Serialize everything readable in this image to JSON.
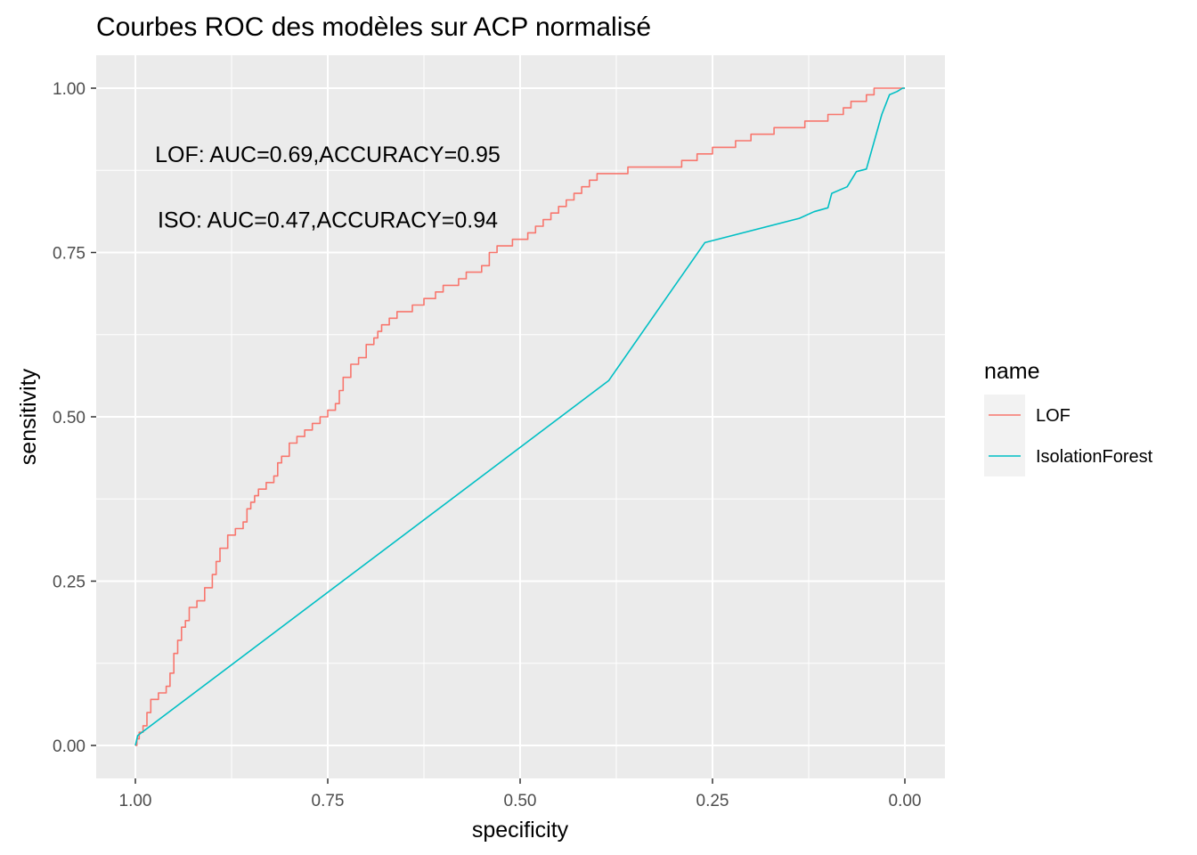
{
  "chart_data": {
    "type": "line",
    "title": "Courbes ROC des modèles sur ACP normalisé",
    "xlabel": "specificity",
    "ylabel": "sensitivity",
    "xlim": [
      1.0,
      0.0
    ],
    "ylim": [
      0.0,
      1.0
    ],
    "x_reversed": true,
    "x_ticks": [
      {
        "value": 1.0,
        "label": "1.00"
      },
      {
        "value": 0.75,
        "label": "0.75"
      },
      {
        "value": 0.5,
        "label": "0.50"
      },
      {
        "value": 0.25,
        "label": "0.25"
      },
      {
        "value": 0.0,
        "label": "0.00"
      }
    ],
    "y_ticks": [
      {
        "value": 0.0,
        "label": "0.00"
      },
      {
        "value": 0.25,
        "label": "0.25"
      },
      {
        "value": 0.5,
        "label": "0.50"
      },
      {
        "value": 0.75,
        "label": "0.75"
      },
      {
        "value": 1.0,
        "label": "1.00"
      }
    ],
    "grid": true,
    "legend": {
      "title": "name",
      "placement": "right"
    },
    "annotations": [
      {
        "text": "LOF: AUC=0.69,ACCURACY=0.95",
        "x": 0.75,
        "y": 0.9
      },
      {
        "text": "ISO: AUC=0.47,ACCURACY=0.94",
        "x": 0.75,
        "y": 0.8
      }
    ],
    "series": [
      {
        "name": "LOF",
        "color": "#F8766D",
        "step": true,
        "points": [
          [
            1.0,
            0.0
          ],
          [
            0.998,
            0.01
          ],
          [
            0.995,
            0.02
          ],
          [
            0.99,
            0.03
          ],
          [
            0.985,
            0.05
          ],
          [
            0.98,
            0.07
          ],
          [
            0.97,
            0.08
          ],
          [
            0.96,
            0.09
          ],
          [
            0.955,
            0.11
          ],
          [
            0.95,
            0.14
          ],
          [
            0.945,
            0.16
          ],
          [
            0.94,
            0.18
          ],
          [
            0.935,
            0.19
          ],
          [
            0.93,
            0.21
          ],
          [
            0.92,
            0.22
          ],
          [
            0.91,
            0.24
          ],
          [
            0.9,
            0.26
          ],
          [
            0.895,
            0.28
          ],
          [
            0.89,
            0.3
          ],
          [
            0.88,
            0.32
          ],
          [
            0.87,
            0.33
          ],
          [
            0.86,
            0.34
          ],
          [
            0.855,
            0.36
          ],
          [
            0.85,
            0.37
          ],
          [
            0.845,
            0.38
          ],
          [
            0.84,
            0.39
          ],
          [
            0.83,
            0.4
          ],
          [
            0.82,
            0.41
          ],
          [
            0.815,
            0.43
          ],
          [
            0.81,
            0.44
          ],
          [
            0.8,
            0.46
          ],
          [
            0.79,
            0.47
          ],
          [
            0.78,
            0.48
          ],
          [
            0.77,
            0.49
          ],
          [
            0.76,
            0.5
          ],
          [
            0.75,
            0.51
          ],
          [
            0.74,
            0.52
          ],
          [
            0.735,
            0.54
          ],
          [
            0.73,
            0.56
          ],
          [
            0.72,
            0.58
          ],
          [
            0.71,
            0.59
          ],
          [
            0.7,
            0.61
          ],
          [
            0.69,
            0.62
          ],
          [
            0.685,
            0.63
          ],
          [
            0.68,
            0.64
          ],
          [
            0.67,
            0.65
          ],
          [
            0.66,
            0.66
          ],
          [
            0.64,
            0.67
          ],
          [
            0.625,
            0.68
          ],
          [
            0.61,
            0.69
          ],
          [
            0.6,
            0.7
          ],
          [
            0.58,
            0.71
          ],
          [
            0.57,
            0.72
          ],
          [
            0.55,
            0.73
          ],
          [
            0.54,
            0.75
          ],
          [
            0.53,
            0.76
          ],
          [
            0.51,
            0.77
          ],
          [
            0.49,
            0.78
          ],
          [
            0.48,
            0.79
          ],
          [
            0.47,
            0.8
          ],
          [
            0.46,
            0.81
          ],
          [
            0.45,
            0.82
          ],
          [
            0.44,
            0.83
          ],
          [
            0.43,
            0.84
          ],
          [
            0.42,
            0.85
          ],
          [
            0.41,
            0.86
          ],
          [
            0.4,
            0.87
          ],
          [
            0.38,
            0.87
          ],
          [
            0.36,
            0.88
          ],
          [
            0.31,
            0.88
          ],
          [
            0.29,
            0.89
          ],
          [
            0.27,
            0.9
          ],
          [
            0.25,
            0.91
          ],
          [
            0.23,
            0.91
          ],
          [
            0.22,
            0.92
          ],
          [
            0.2,
            0.93
          ],
          [
            0.17,
            0.94
          ],
          [
            0.15,
            0.94
          ],
          [
            0.13,
            0.95
          ],
          [
            0.1,
            0.96
          ],
          [
            0.08,
            0.97
          ],
          [
            0.07,
            0.98
          ],
          [
            0.05,
            0.99
          ],
          [
            0.04,
            1.0
          ],
          [
            0.0,
            1.0
          ]
        ]
      },
      {
        "name": "IsolationForest",
        "color": "#00BFC4",
        "step": false,
        "points": [
          [
            1.0,
            0.0
          ],
          [
            0.997,
            0.015
          ],
          [
            0.385,
            0.555
          ],
          [
            0.26,
            0.765
          ],
          [
            0.137,
            0.802
          ],
          [
            0.118,
            0.812
          ],
          [
            0.1,
            0.818
          ],
          [
            0.095,
            0.84
          ],
          [
            0.075,
            0.85
          ],
          [
            0.063,
            0.873
          ],
          [
            0.05,
            0.877
          ],
          [
            0.03,
            0.96
          ],
          [
            0.02,
            0.99
          ],
          [
            0.01,
            0.995
          ],
          [
            0.003,
            1.0
          ],
          [
            0.0,
            1.0
          ]
        ]
      }
    ]
  }
}
